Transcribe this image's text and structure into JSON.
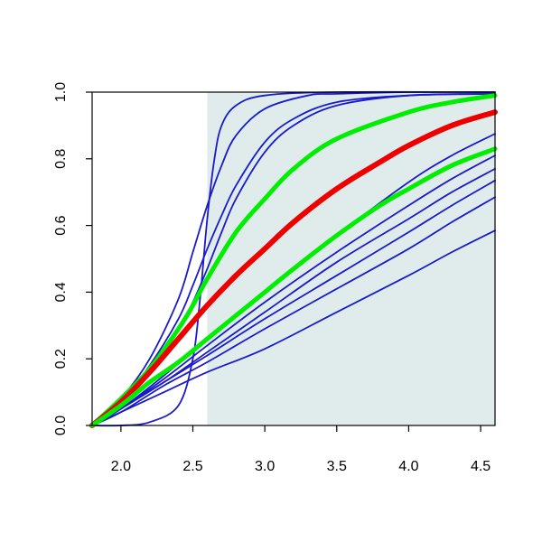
{
  "chart_data": {
    "type": "line",
    "title": "",
    "xlabel": "",
    "ylabel": "",
    "xlim": [
      1.8,
      4.6
    ],
    "ylim": [
      0.0,
      1.0
    ],
    "x_ticks": [
      2.0,
      2.5,
      3.0,
      3.5,
      4.0,
      4.5
    ],
    "x_tick_labels": [
      "2.0",
      "2.5",
      "3.0",
      "3.5",
      "4.0",
      "4.5"
    ],
    "y_ticks": [
      0.0,
      0.2,
      0.4,
      0.6,
      0.8,
      1.0
    ],
    "y_tick_labels": [
      "0.0",
      "0.2",
      "0.4",
      "0.6",
      "0.8",
      "1.0"
    ],
    "shaded_region": {
      "x_start": 2.6,
      "x_end": 4.6,
      "color": "#e0ecec"
    },
    "grid": false,
    "legend": "none",
    "series": [
      {
        "color": "#1a1acc",
        "points": [
          [
            1.8,
            0.0
          ],
          [
            2.0,
            0.0
          ],
          [
            2.2,
            0.01
          ],
          [
            2.4,
            0.06
          ],
          [
            2.5,
            0.2
          ],
          [
            2.55,
            0.38
          ],
          [
            2.6,
            0.62
          ],
          [
            2.65,
            0.8
          ],
          [
            2.7,
            0.9
          ],
          [
            2.8,
            0.96
          ],
          [
            3.0,
            0.99
          ],
          [
            3.5,
            1.0
          ],
          [
            4.6,
            1.0
          ]
        ]
      },
      {
        "color": "#1a1acc",
        "points": [
          [
            1.8,
            0.0
          ],
          [
            2.0,
            0.08
          ],
          [
            2.2,
            0.2
          ],
          [
            2.4,
            0.38
          ],
          [
            2.5,
            0.52
          ],
          [
            2.6,
            0.66
          ],
          [
            2.7,
            0.78
          ],
          [
            2.8,
            0.87
          ],
          [
            3.0,
            0.95
          ],
          [
            3.3,
            0.99
          ],
          [
            3.5,
            0.995
          ],
          [
            4.0,
            1.0
          ],
          [
            4.6,
            1.0
          ]
        ]
      },
      {
        "color": "#1a1acc",
        "points": [
          [
            1.8,
            0.0
          ],
          [
            2.0,
            0.07
          ],
          [
            2.2,
            0.18
          ],
          [
            2.4,
            0.32
          ],
          [
            2.5,
            0.42
          ],
          [
            2.6,
            0.53
          ],
          [
            2.7,
            0.63
          ],
          [
            2.8,
            0.72
          ],
          [
            3.0,
            0.85
          ],
          [
            3.2,
            0.92
          ],
          [
            3.5,
            0.97
          ],
          [
            4.0,
            0.99
          ],
          [
            4.6,
            0.995
          ]
        ]
      },
      {
        "color": "#1a1acc",
        "points": [
          [
            1.8,
            0.0
          ],
          [
            2.0,
            0.07
          ],
          [
            2.2,
            0.17
          ],
          [
            2.4,
            0.29
          ],
          [
            2.5,
            0.37
          ],
          [
            2.6,
            0.47
          ],
          [
            2.7,
            0.58
          ],
          [
            2.8,
            0.68
          ],
          [
            3.0,
            0.82
          ],
          [
            3.2,
            0.9
          ],
          [
            3.5,
            0.96
          ],
          [
            4.0,
            0.99
          ],
          [
            4.6,
            0.995
          ]
        ]
      },
      {
        "color": "#1a1acc",
        "points": [
          [
            1.8,
            0.0
          ],
          [
            2.0,
            0.05
          ],
          [
            2.3,
            0.15
          ],
          [
            2.6,
            0.26
          ],
          [
            3.0,
            0.4
          ],
          [
            3.5,
            0.57
          ],
          [
            4.0,
            0.73
          ],
          [
            4.3,
            0.81
          ],
          [
            4.6,
            0.875
          ]
        ]
      },
      {
        "color": "#1a1acc",
        "points": [
          [
            1.8,
            0.0
          ],
          [
            2.0,
            0.05
          ],
          [
            2.3,
            0.14
          ],
          [
            2.6,
            0.24
          ],
          [
            3.0,
            0.37
          ],
          [
            3.5,
            0.52
          ],
          [
            4.0,
            0.66
          ],
          [
            4.3,
            0.74
          ],
          [
            4.6,
            0.81
          ]
        ]
      },
      {
        "color": "#1a1acc",
        "points": [
          [
            1.8,
            0.0
          ],
          [
            2.0,
            0.05
          ],
          [
            2.3,
            0.13
          ],
          [
            2.6,
            0.22
          ],
          [
            3.0,
            0.34
          ],
          [
            3.5,
            0.49
          ],
          [
            4.0,
            0.62
          ],
          [
            4.3,
            0.7
          ],
          [
            4.6,
            0.77
          ]
        ]
      },
      {
        "color": "#1a1acc",
        "points": [
          [
            1.8,
            0.0
          ],
          [
            2.0,
            0.05
          ],
          [
            2.3,
            0.13
          ],
          [
            2.6,
            0.21
          ],
          [
            3.0,
            0.32
          ],
          [
            3.5,
            0.45
          ],
          [
            4.0,
            0.58
          ],
          [
            4.3,
            0.66
          ],
          [
            4.6,
            0.735
          ]
        ]
      },
      {
        "color": "#1a1acc",
        "points": [
          [
            1.8,
            0.0
          ],
          [
            2.0,
            0.04
          ],
          [
            2.3,
            0.12
          ],
          [
            2.6,
            0.19
          ],
          [
            3.0,
            0.29
          ],
          [
            3.5,
            0.41
          ],
          [
            4.0,
            0.53
          ],
          [
            4.3,
            0.61
          ],
          [
            4.6,
            0.685
          ]
        ]
      },
      {
        "color": "#1a1acc",
        "points": [
          [
            1.8,
            0.0
          ],
          [
            2.0,
            0.04
          ],
          [
            2.3,
            0.1
          ],
          [
            2.6,
            0.16
          ],
          [
            3.0,
            0.23
          ],
          [
            3.5,
            0.34
          ],
          [
            4.0,
            0.45
          ],
          [
            4.3,
            0.52
          ],
          [
            4.6,
            0.585
          ]
        ]
      },
      {
        "color": "#00ee00",
        "points": [
          [
            1.8,
            0.0
          ],
          [
            2.0,
            0.08
          ],
          [
            2.2,
            0.17
          ],
          [
            2.4,
            0.29
          ],
          [
            2.5,
            0.36
          ],
          [
            2.6,
            0.44
          ],
          [
            2.8,
            0.58
          ],
          [
            3.0,
            0.68
          ],
          [
            3.2,
            0.77
          ],
          [
            3.5,
            0.86
          ],
          [
            4.0,
            0.94
          ],
          [
            4.3,
            0.97
          ],
          [
            4.6,
            0.99
          ]
        ]
      },
      {
        "color": "#ee0000",
        "points": [
          [
            1.8,
            0.0
          ],
          [
            2.0,
            0.07
          ],
          [
            2.2,
            0.16
          ],
          [
            2.4,
            0.26
          ],
          [
            2.6,
            0.36
          ],
          [
            2.8,
            0.45
          ],
          [
            3.0,
            0.53
          ],
          [
            3.2,
            0.61
          ],
          [
            3.5,
            0.71
          ],
          [
            3.8,
            0.79
          ],
          [
            4.0,
            0.84
          ],
          [
            4.3,
            0.9
          ],
          [
            4.6,
            0.94
          ]
        ]
      },
      {
        "color": "#00ee00",
        "points": [
          [
            1.8,
            0.0
          ],
          [
            2.0,
            0.06
          ],
          [
            2.2,
            0.13
          ],
          [
            2.4,
            0.19
          ],
          [
            2.6,
            0.26
          ],
          [
            2.8,
            0.33
          ],
          [
            3.0,
            0.4
          ],
          [
            3.2,
            0.47
          ],
          [
            3.5,
            0.57
          ],
          [
            3.8,
            0.66
          ],
          [
            4.0,
            0.71
          ],
          [
            4.3,
            0.78
          ],
          [
            4.6,
            0.83
          ]
        ]
      }
    ]
  }
}
